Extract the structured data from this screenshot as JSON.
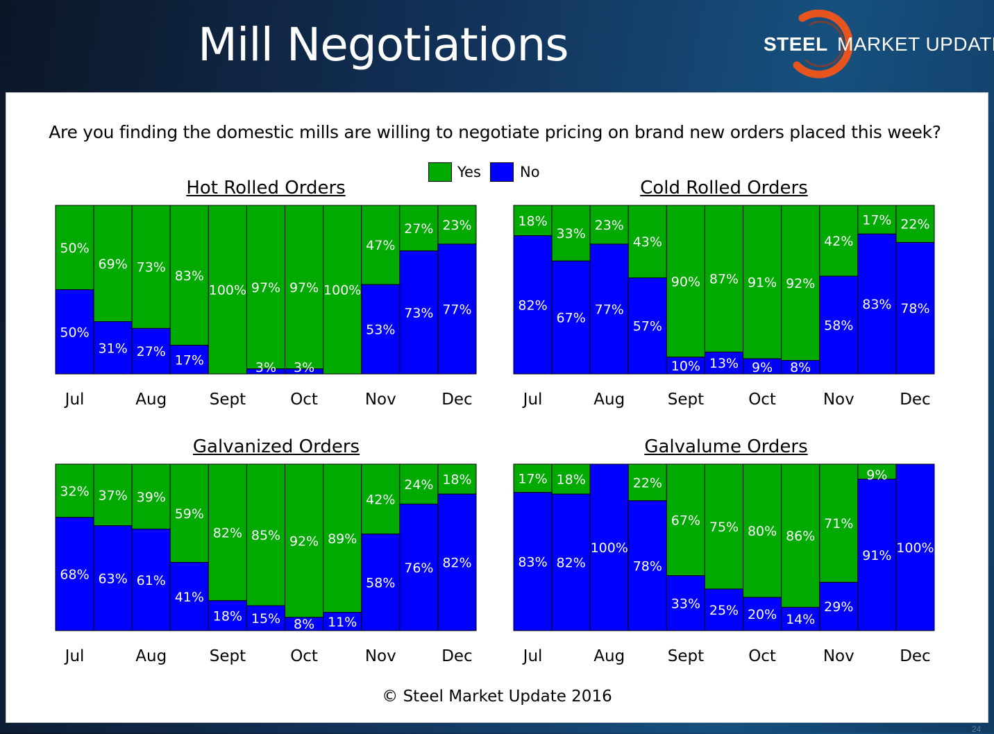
{
  "title": "Mill Negotiations",
  "logo": {
    "bold": "STEEL",
    "light": "MARKET UPDATE",
    "ring_color": "#e8541e"
  },
  "question": "Are you finding the domestic mills are willing to negotiate pricing on brand new orders placed this week?",
  "legend": [
    {
      "label": "Yes",
      "color": "#00aa00"
    },
    {
      "label": "No",
      "color": "#0000ff"
    }
  ],
  "copyright": "© Steel Market Update 2016",
  "slide_number": "24",
  "chart_data": [
    {
      "type": "bar",
      "stacked": true,
      "title": "Hot Rolled Orders",
      "month_labels": [
        "Jul",
        "Aug",
        "Sept",
        "Oct",
        "Nov",
        "Dec"
      ],
      "series": [
        {
          "name": "Yes",
          "color": "#00aa00",
          "values": [
            50,
            69,
            73,
            83,
            100,
            97,
            97,
            100,
            47,
            27,
            23
          ]
        },
        {
          "name": "No",
          "color": "#0000ff",
          "values": [
            50,
            31,
            27,
            17,
            0,
            3,
            3,
            0,
            53,
            73,
            77
          ]
        }
      ],
      "ylim": [
        0,
        100
      ]
    },
    {
      "type": "bar",
      "stacked": true,
      "title": "Cold Rolled Orders",
      "month_labels": [
        "Jul",
        "Aug",
        "Sept",
        "Oct",
        "Nov",
        "Dec"
      ],
      "series": [
        {
          "name": "Yes",
          "color": "#00aa00",
          "values": [
            18,
            33,
            23,
            43,
            90,
            87,
            91,
            92,
            42,
            17,
            22
          ]
        },
        {
          "name": "No",
          "color": "#0000ff",
          "values": [
            82,
            67,
            77,
            57,
            10,
            13,
            9,
            8,
            58,
            83,
            78
          ]
        }
      ],
      "ylim": [
        0,
        100
      ]
    },
    {
      "type": "bar",
      "stacked": true,
      "title": "Galvanized Orders",
      "month_labels": [
        "Jul",
        "Aug",
        "Sept",
        "Oct",
        "Nov",
        "Dec"
      ],
      "series": [
        {
          "name": "Yes",
          "color": "#00aa00",
          "values": [
            32,
            37,
            39,
            59,
            82,
            85,
            92,
            89,
            42,
            24,
            18
          ]
        },
        {
          "name": "No",
          "color": "#0000ff",
          "values": [
            68,
            63,
            61,
            41,
            18,
            15,
            8,
            11,
            58,
            76,
            82
          ]
        }
      ],
      "ylim": [
        0,
        100
      ]
    },
    {
      "type": "bar",
      "stacked": true,
      "title": "Galvalume Orders",
      "month_labels": [
        "Jul",
        "Aug",
        "Sept",
        "Oct",
        "Nov",
        "Dec"
      ],
      "series": [
        {
          "name": "Yes",
          "color": "#00aa00",
          "values": [
            17,
            18,
            0,
            22,
            67,
            75,
            80,
            86,
            71,
            9,
            0
          ]
        },
        {
          "name": "No",
          "color": "#0000ff",
          "values": [
            83,
            82,
            100,
            78,
            33,
            25,
            20,
            14,
            29,
            91,
            100
          ]
        }
      ],
      "ylim": [
        0,
        100
      ]
    }
  ]
}
